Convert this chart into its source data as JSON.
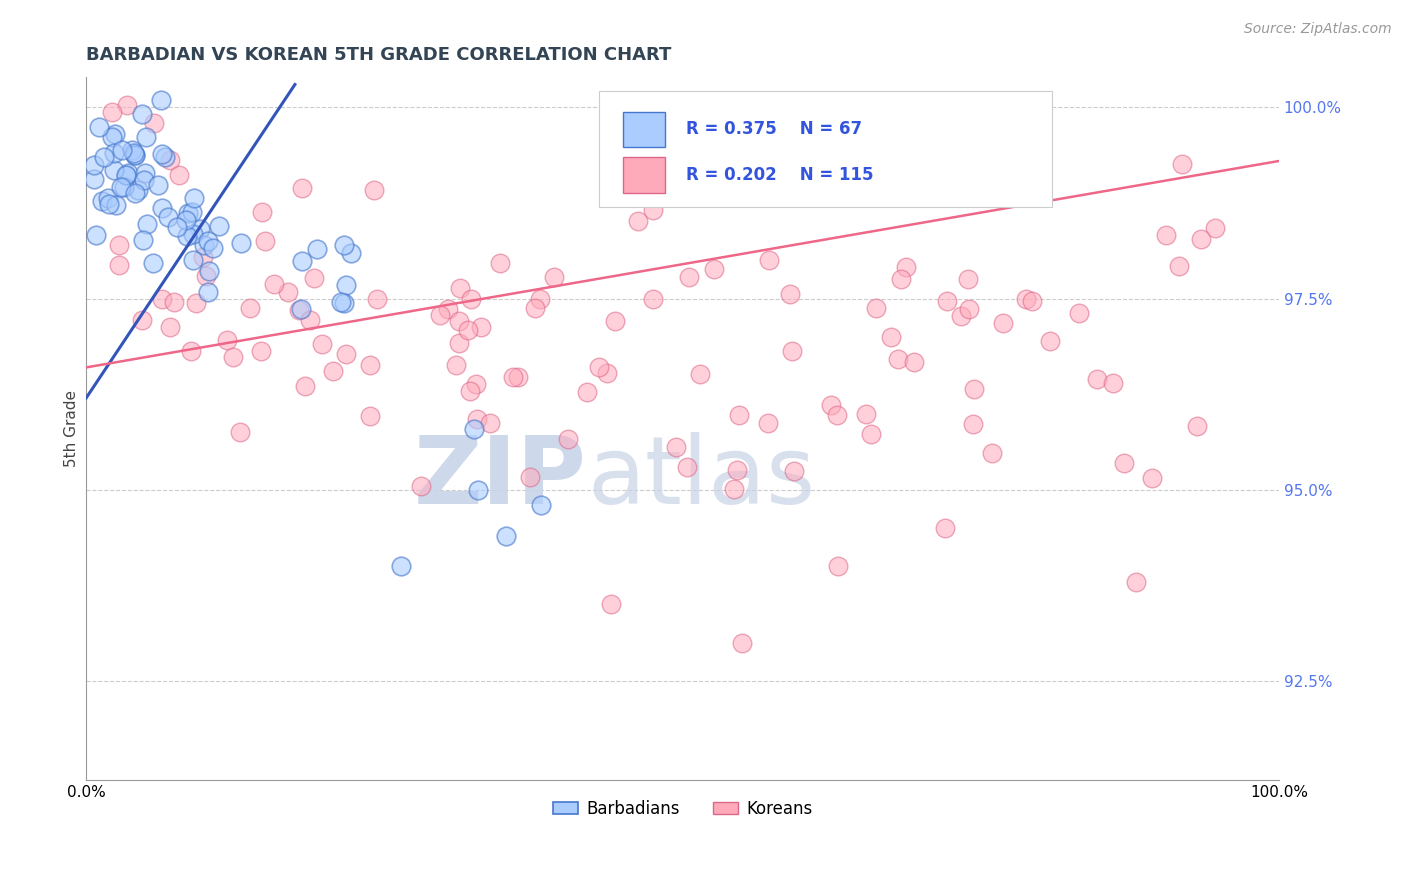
{
  "title": "BARBADIAN VS KOREAN 5TH GRADE CORRELATION CHART",
  "source": "Source: ZipAtlas.com",
  "ylabel": "5th Grade",
  "blue_R": 0.375,
  "blue_N": 67,
  "pink_R": 0.202,
  "pink_N": 115,
  "blue_face_color": "#aaccff",
  "pink_face_color": "#ffaabb",
  "blue_edge_color": "#4477cc",
  "pink_edge_color": "#dd6688",
  "blue_line_color": "#3355bb",
  "pink_line_color": "#ee6688",
  "xlim": [
    0.0,
    1.0
  ],
  "ylim": [
    0.912,
    1.004
  ],
  "yticks": [
    0.925,
    0.95,
    0.975,
    1.0
  ],
  "ytick_labels": [
    "92.5%",
    "95.0%",
    "97.5%",
    "100.0%"
  ],
  "watermark_zip": "ZIP",
  "watermark_atlas": "atlas",
  "background_color": "#ffffff",
  "title_fontsize": 13,
  "tick_fontsize": 11,
  "source_fontsize": 10,
  "legend_label_blue": "Barbadians",
  "legend_label_pink": "Koreans",
  "blue_line_x0": 0.0,
  "blue_line_x1": 0.175,
  "blue_line_y0": 0.962,
  "blue_line_y1": 1.003,
  "pink_line_x0": 0.0,
  "pink_line_x1": 1.0,
  "pink_line_y0": 0.966,
  "pink_line_y1": 0.993
}
